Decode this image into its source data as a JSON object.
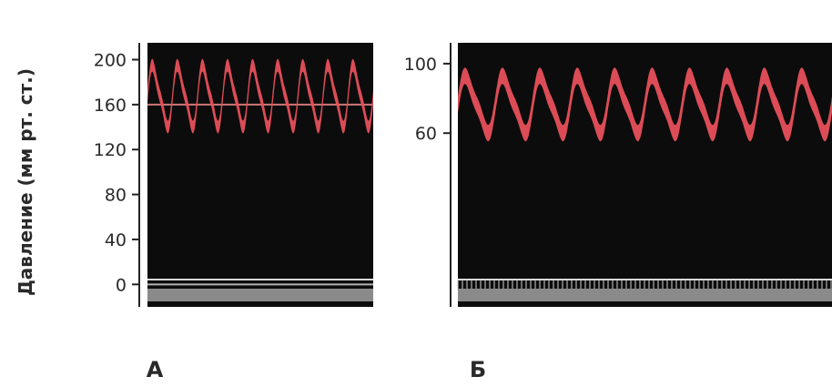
{
  "chart_data": [
    {
      "type": "line",
      "panel_label": "А",
      "ylabel": "Давление (мм рт. ст.)",
      "yticks": [
        "200",
        "160",
        "120",
        "80",
        "40",
        "0"
      ],
      "ytick_values": [
        200,
        160,
        120,
        80,
        40,
        0
      ],
      "ylim": [
        -20,
        215
      ],
      "series": [
        {
          "values": {
            "max": 195,
            "min": 140,
            "cycles": 9
          },
          "color": "#e8505b"
        }
      ],
      "reference_lines": [
        160,
        0
      ],
      "background": "#0c0c0c"
    },
    {
      "type": "line",
      "panel_label": "Б",
      "yticks": [
        "100",
        "60"
      ],
      "ytick_values": [
        100,
        60
      ],
      "ylim": [
        -40,
        112
      ],
      "series": [
        {
          "values": {
            "max": 93,
            "min": 60,
            "cycles": 10
          },
          "color": "#e8505b"
        }
      ],
      "background": "#0c0c0c"
    }
  ]
}
